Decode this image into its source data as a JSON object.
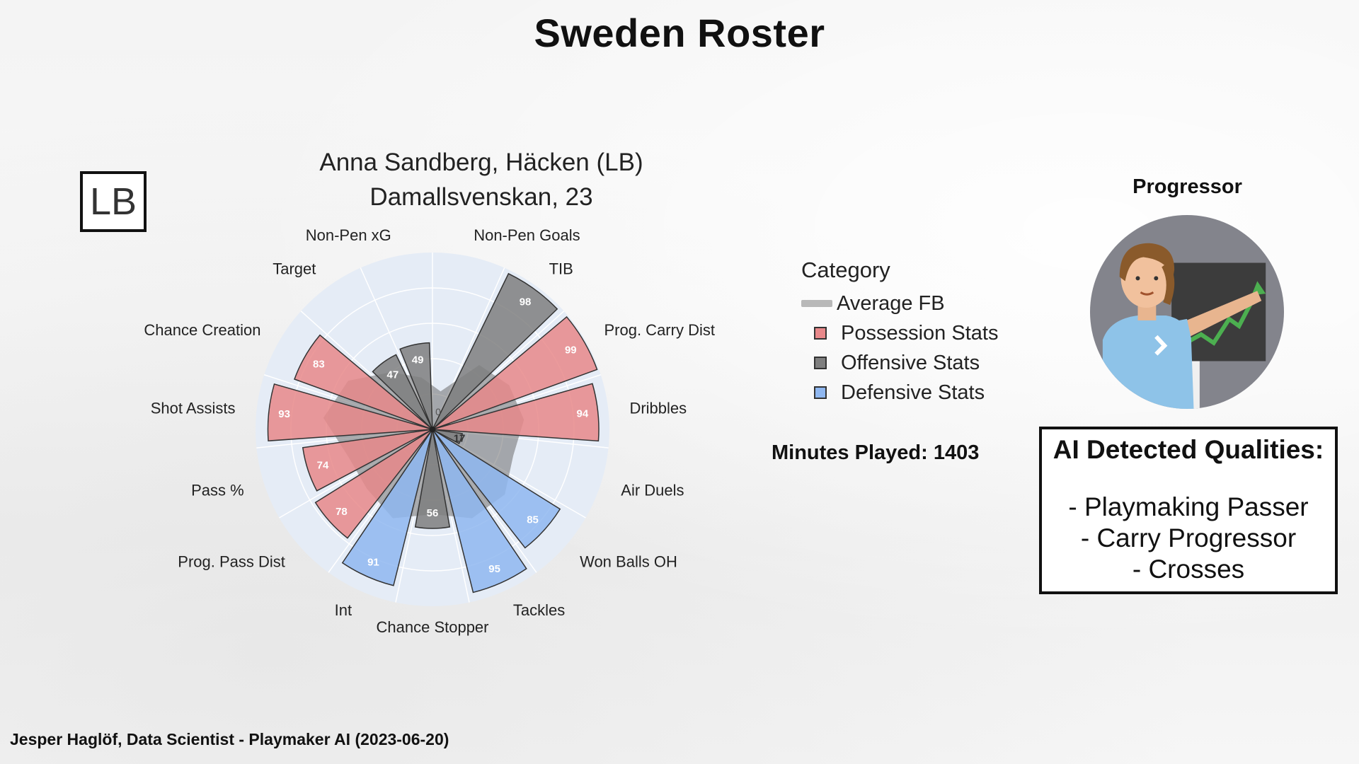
{
  "page": {
    "title": "Sweden Roster",
    "position_badge": "LB",
    "footer": "Jesper Haglöf, Data Scientist - Playmaker AI (2023-06-20)"
  },
  "chart_data": {
    "type": "radar-bar",
    "title_line1": "Anna Sandberg, Häcken (LB)",
    "title_line2": "Damallsvenskan, 23",
    "rmax": 100,
    "zero_label": "0",
    "categories": [
      {
        "label": "Non-Pen Goals",
        "value": null,
        "group": "Offensive Stats",
        "avg": 22
      },
      {
        "label": "TIB",
        "value": 98,
        "group": "Offensive Stats",
        "avg": 45
      },
      {
        "label": "Prog. Carry Dist",
        "value": 99,
        "group": "Possession Stats",
        "avg": 50
      },
      {
        "label": "Dribbles",
        "value": 94,
        "group": "Possession Stats",
        "avg": 52
      },
      {
        "label": "Air Duels",
        "value": 17,
        "group": "Offensive Stats",
        "avg": 48
      },
      {
        "label": "Won Balls OH",
        "value": 85,
        "group": "Defensive Stats",
        "avg": 55
      },
      {
        "label": "Tackles",
        "value": 95,
        "group": "Defensive Stats",
        "avg": 55
      },
      {
        "label": "Chance Stopper",
        "value": 56,
        "group": "Offensive Stats",
        "avg": 48
      },
      {
        "label": "Int",
        "value": 91,
        "group": "Defensive Stats",
        "avg": 55
      },
      {
        "label": "Prog. Pass Dist",
        "value": 78,
        "group": "Possession Stats",
        "avg": 50
      },
      {
        "label": "Pass %",
        "value": 74,
        "group": "Possession Stats",
        "avg": 50
      },
      {
        "label": "Shot Assists",
        "value": 93,
        "group": "Possession Stats",
        "avg": 62
      },
      {
        "label": "Chance Creation",
        "value": 83,
        "group": "Possession Stats",
        "avg": 55
      },
      {
        "label": "Target",
        "value": 47,
        "group": "Offensive Stats",
        "avg": 40
      },
      {
        "label": "Non-Pen xG",
        "value": 49,
        "group": "Offensive Stats",
        "avg": 30
      }
    ],
    "legend": {
      "title": "Category",
      "items": [
        {
          "label": "Average FB",
          "kind": "line",
          "color": "#b8b8b8"
        },
        {
          "label": "Possession Stats",
          "kind": "box",
          "color": "#e8888a"
        },
        {
          "label": "Offensive Stats",
          "kind": "box",
          "color": "#7f7f7f"
        },
        {
          "label": "Defensive Stats",
          "kind": "box",
          "color": "#8fb7f0"
        }
      ]
    },
    "colors": {
      "Possession Stats": "#e8888a",
      "Offensive Stats": "#7f7f7f",
      "Defensive Stats": "#8fb7f0",
      "average": "#6b6b6b",
      "polar_bg": "#e5ecf6"
    }
  },
  "side": {
    "minutes_label": "Minutes Played: 1403",
    "archetype": "Progressor",
    "qualities_title": "AI Detected Qualities:",
    "qualities": [
      "- Playmaking Passer",
      "- Carry Progressor",
      "- Crosses"
    ]
  }
}
